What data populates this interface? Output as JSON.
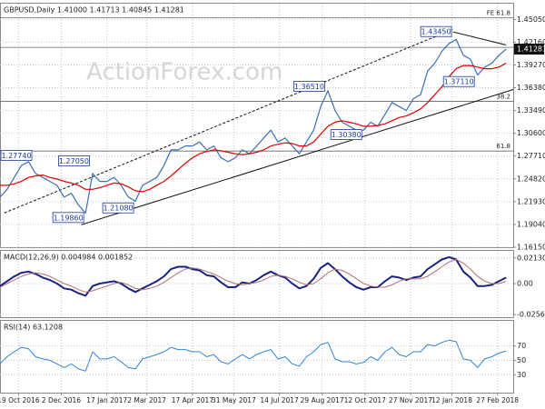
{
  "chart_data": [
    {
      "type": "line",
      "title": "GBPUSD,Daily  1.41000 1.41713 1.40845 1.41281",
      "watermark": "ActionForex.com",
      "x": [
        0,
        5,
        10,
        15,
        20,
        25,
        30,
        35,
        40,
        45,
        50,
        55,
        60,
        65,
        70,
        75,
        80,
        85,
        90,
        95,
        100,
        105,
        110,
        115,
        120,
        125,
        130,
        135,
        140,
        145,
        150,
        155,
        160,
        165,
        170,
        175,
        180,
        185,
        190,
        195,
        200,
        205,
        210,
        215,
        220,
        225,
        230,
        235,
        240,
        245,
        250,
        255,
        260,
        265,
        270,
        275,
        280,
        285,
        290,
        295,
        300,
        305,
        310,
        315,
        320,
        325,
        330,
        335,
        340,
        345,
        350,
        355
      ],
      "xlim": [
        0,
        360
      ],
      "xticks": [
        {
          "value": 13,
          "label": "19 Oct 2016"
        },
        {
          "value": 43,
          "label": "2 Dec 2016"
        },
        {
          "value": 75,
          "label": "17 Jan 2017"
        },
        {
          "value": 103,
          "label": "2 Mar 2017"
        },
        {
          "value": 135,
          "label": "17 Apr 2017"
        },
        {
          "value": 164,
          "label": "31 May 2017"
        },
        {
          "value": 196,
          "label": "14 Jul 2017"
        },
        {
          "value": 226,
          "label": "29 Aug 2017"
        },
        {
          "value": 256,
          "label": "12 Oct 2017"
        },
        {
          "value": 288,
          "label": "27 Nov 2017"
        },
        {
          "value": 317,
          "label": "12 Jan 2018"
        },
        {
          "value": 349,
          "label": "27 Feb 2018"
        }
      ],
      "ylim": [
        1.1615,
        1.4705
      ],
      "yticks": [
        {
          "value": 1.4505,
          "label": "1.45050"
        },
        {
          "value": 1.4216,
          "label": "1.42160"
        },
        {
          "value": 1.3927,
          "label": "1.39270"
        },
        {
          "value": 1.3638,
          "label": "1.36380"
        },
        {
          "value": 1.3349,
          "label": "1.33490"
        },
        {
          "value": 1.306,
          "label": "1.30600"
        },
        {
          "value": 1.2771,
          "label": "1.27710"
        },
        {
          "value": 1.2482,
          "label": "1.24820"
        },
        {
          "value": 1.2193,
          "label": "1.21930"
        },
        {
          "value": 1.1904,
          "label": "1.19040"
        },
        {
          "value": 1.1615,
          "label": "1.16150"
        }
      ],
      "grid": true,
      "series": [
        {
          "color": "#3a6fb0",
          "values": [
            1.225,
            1.235,
            1.25,
            1.265,
            1.27,
            1.255,
            1.25,
            1.245,
            1.24,
            1.225,
            1.23,
            1.215,
            1.205,
            1.255,
            1.245,
            1.245,
            1.25,
            1.24,
            1.225,
            1.22,
            1.24,
            1.245,
            1.25,
            1.265,
            1.285,
            1.285,
            1.29,
            1.29,
            1.295,
            1.285,
            1.29,
            1.275,
            1.27,
            1.275,
            1.285,
            1.28,
            1.29,
            1.3,
            1.31,
            1.295,
            1.3,
            1.29,
            1.28,
            1.295,
            1.31,
            1.34,
            1.36,
            1.335,
            1.32,
            1.315,
            1.31,
            1.31,
            1.32,
            1.315,
            1.33,
            1.345,
            1.34,
            1.335,
            1.35,
            1.355,
            1.385,
            1.395,
            1.41,
            1.42,
            1.425,
            1.405,
            1.4,
            1.38,
            1.39,
            1.395,
            1.405,
            1.41281
          ]
        },
        {
          "color": "#e00000",
          "values": [
            1.24,
            1.24,
            1.242,
            1.245,
            1.25,
            1.252,
            1.253,
            1.25,
            1.248,
            1.245,
            1.243,
            1.24,
            1.235,
            1.235,
            1.237,
            1.24,
            1.243,
            1.242,
            1.238,
            1.233,
            1.232,
            1.235,
            1.24,
            1.245,
            1.252,
            1.26,
            1.268,
            1.275,
            1.28,
            1.283,
            1.285,
            1.284,
            1.282,
            1.28,
            1.279,
            1.28,
            1.282,
            1.285,
            1.29,
            1.292,
            1.294,
            1.293,
            1.29,
            1.29,
            1.295,
            1.305,
            1.315,
            1.32,
            1.322,
            1.32,
            1.318,
            1.315,
            1.315,
            1.316,
            1.318,
            1.322,
            1.326,
            1.328,
            1.332,
            1.337,
            1.345,
            1.355,
            1.365,
            1.378,
            1.388,
            1.392,
            1.392,
            1.39,
            1.388,
            1.388,
            1.39,
            1.395
          ]
        }
      ],
      "last_price": 1.41281,
      "annotations": [
        {
          "x": 19,
          "value": 1.2774,
          "label": "1.27740"
        },
        {
          "x": 64,
          "value": 1.2705,
          "label": "1.27050"
        },
        {
          "x": 60,
          "value": 1.1986,
          "label": "1.19860"
        },
        {
          "x": 95,
          "value": 1.2108,
          "label": "1.21080"
        },
        {
          "x": 229,
          "value": 1.3651,
          "label": "1.36510"
        },
        {
          "x": 255,
          "value": 1.3038,
          "label": "1.30380"
        },
        {
          "x": 318,
          "value": 1.4345,
          "label": "1.43450"
        },
        {
          "x": 334,
          "value": 1.3711,
          "label": "1.37110"
        }
      ],
      "levels": [
        {
          "value": 1.4525,
          "label": "FE 61.8"
        },
        {
          "value": 1.415
        },
        {
          "value": 1.3465,
          "label": "38.2"
        },
        {
          "value": 1.2835,
          "label": "61.8"
        }
      ],
      "trendlines": [
        {
          "x": [
            3,
            318
          ],
          "values": [
            1.205,
            1.438
          ],
          "style": "dashed"
        },
        {
          "x": [
            57,
            360
          ],
          "values": [
            1.19,
            1.3615
          ],
          "style": "solid"
        },
        {
          "x": [
            318,
            355
          ],
          "values": [
            1.4345,
            1.418
          ],
          "style": "solid"
        }
      ]
    },
    {
      "type": "line",
      "title": "MACD(12,26,9) 0.004984 0.001852",
      "ylim": [
        -0.0279,
        0.0272
      ],
      "yticks": [
        0.021303,
        {
          "value": 0,
          "label": "0.00"
        },
        -0.02565
      ],
      "grid": true,
      "series": [
        {
          "color": "#1a237e",
          "width": 2,
          "values": [
            -0.002,
            0.002,
            0.006,
            0.009,
            0.01,
            0.008,
            0.005,
            0.003,
            0,
            -0.004,
            -0.005,
            -0.008,
            -0.01,
            -0.002,
            0,
            0.001,
            0.002,
            0,
            -0.004,
            -0.007,
            -0.004,
            -0.001,
            0.002,
            0.006,
            0.012,
            0.014,
            0.014,
            0.012,
            0.011,
            0.007,
            0.006,
            0.001,
            -0.003,
            -0.003,
            0.001,
            0,
            0.003,
            0.007,
            0.01,
            0.007,
            0.005,
            0,
            -0.004,
            -0.002,
            0.004,
            0.013,
            0.017,
            0.012,
            0.006,
            0.001,
            -0.003,
            -0.005,
            -0.003,
            -0.003,
            0.002,
            0.006,
            0.005,
            0.003,
            0.005,
            0.006,
            0.012,
            0.016,
            0.02,
            0.022,
            0.02,
            0.01,
            0.005,
            -0.002,
            -0.002,
            -0.001,
            0.002,
            0.004984
          ]
        },
        {
          "color": "#b07070",
          "width": 1,
          "values": [
            -0.003,
            0,
            0.003,
            0.006,
            0.008,
            0.009,
            0.008,
            0.006,
            0.003,
            0,
            -0.002,
            -0.005,
            -0.007,
            -0.006,
            -0.004,
            -0.002,
            0,
            0.001,
            -0.001,
            -0.004,
            -0.005,
            -0.004,
            -0.002,
            0.001,
            0.005,
            0.009,
            0.012,
            0.013,
            0.012,
            0.01,
            0.008,
            0.005,
            0.002,
            0,
            -0.001,
            0,
            0.001,
            0.003,
            0.006,
            0.007,
            0.006,
            0.004,
            0.001,
            -0.001,
            0,
            0.004,
            0.009,
            0.012,
            0.011,
            0.008,
            0.004,
            0,
            -0.002,
            -0.003,
            -0.003,
            -0.001,
            0.002,
            0.004,
            0.004,
            0.004,
            0.006,
            0.01,
            0.014,
            0.018,
            0.02,
            0.017,
            0.012,
            0.006,
            0.002,
            0,
            0,
            0.001852
          ]
        }
      ]
    },
    {
      "type": "line",
      "title": "RSI(14) 63.1208",
      "ylim": [
        5,
        105
      ],
      "yticks": [
        70,
        50,
        30
      ],
      "grid": true,
      "series": [
        {
          "color": "#2f86d6",
          "width": 1,
          "values": [
            45,
            55,
            62,
            68,
            66,
            55,
            52,
            50,
            45,
            40,
            45,
            38,
            35,
            62,
            52,
            52,
            55,
            48,
            40,
            38,
            52,
            55,
            58,
            62,
            68,
            65,
            65,
            62,
            62,
            55,
            58,
            48,
            45,
            52,
            58,
            52,
            58,
            62,
            65,
            52,
            55,
            45,
            42,
            55,
            62,
            72,
            75,
            52,
            48,
            48,
            45,
            47,
            55,
            50,
            62,
            68,
            58,
            55,
            62,
            62,
            72,
            70,
            75,
            78,
            76,
            52,
            50,
            40,
            52,
            55,
            60,
            63.1208
          ]
        }
      ]
    }
  ]
}
